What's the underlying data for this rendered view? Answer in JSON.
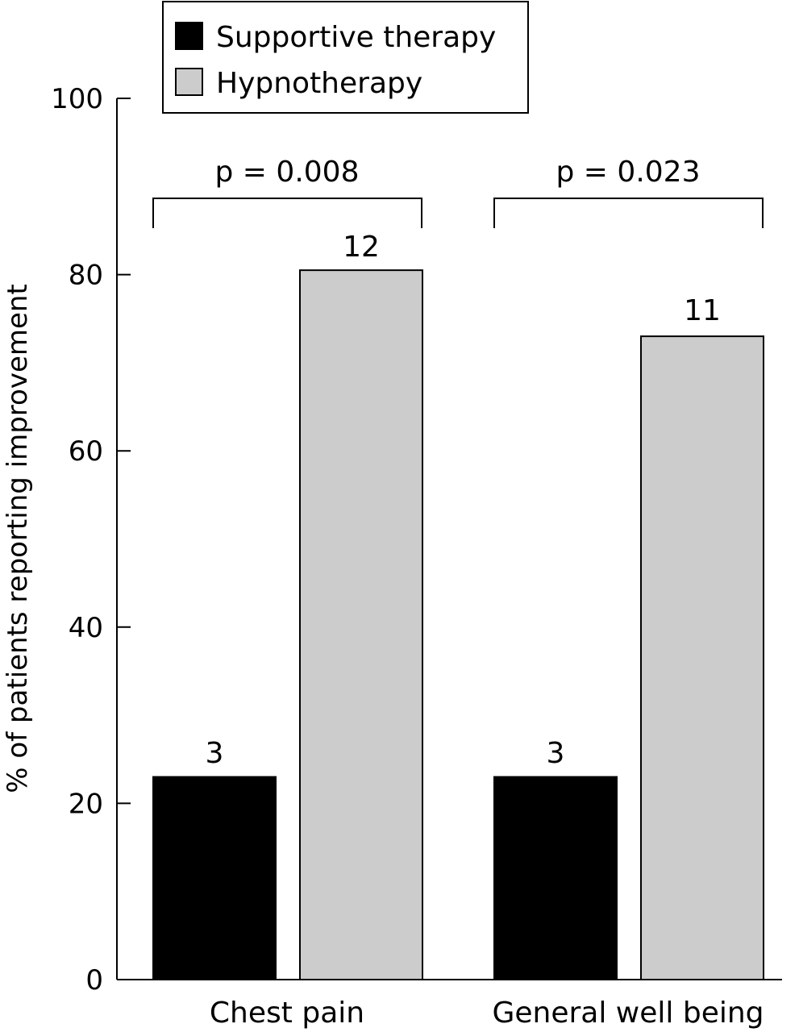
{
  "chart_data": {
    "type": "bar",
    "categories": [
      "Chest pain",
      "General well being"
    ],
    "series": [
      {
        "name": "Supportive therapy",
        "values": [
          23,
          23
        ],
        "counts": [
          "3",
          "3"
        ],
        "color": "#000000"
      },
      {
        "name": "Hypnotherapy",
        "values": [
          80.5,
          73
        ],
        "counts": [
          "12",
          "11"
        ],
        "color": "#cccccc"
      }
    ],
    "ylabel": "% of patients reporting improvement",
    "xlabel": "",
    "ylim": [
      0,
      100
    ],
    "yticks": [
      "0",
      "20",
      "40",
      "60",
      "80",
      "100"
    ],
    "annotations": [
      "p = 0.008",
      "p = 0.023"
    ],
    "legend_position": "top",
    "grid": false
  }
}
